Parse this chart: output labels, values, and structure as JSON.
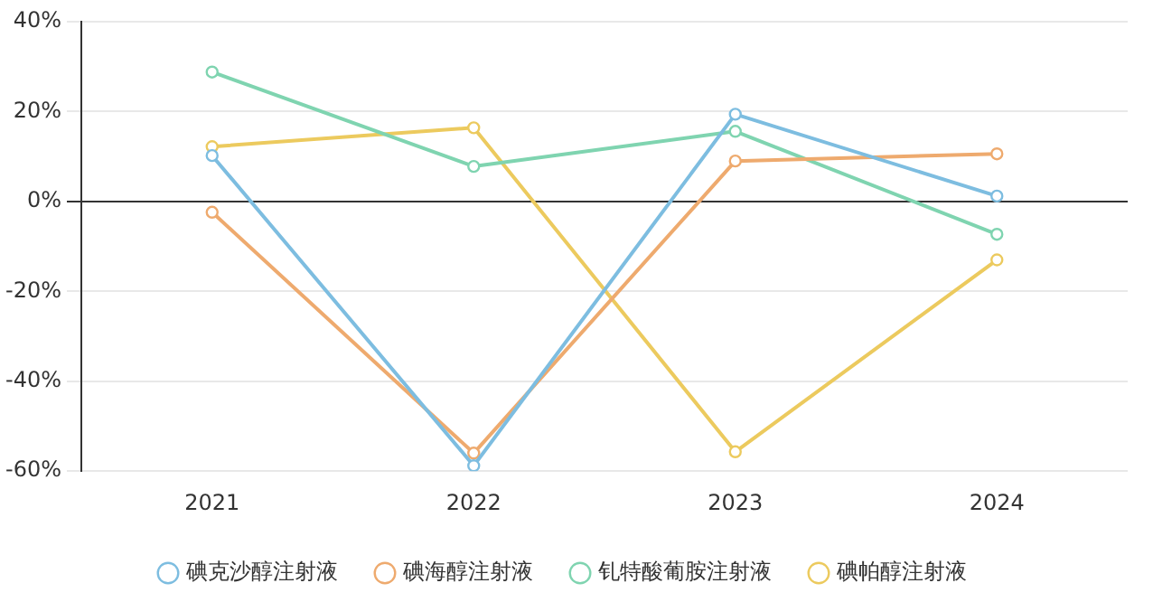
{
  "chart_data": {
    "type": "line",
    "categories": [
      "2021",
      "2022",
      "2023",
      "2024"
    ],
    "series": [
      {
        "name": "碘克沙醇注射液",
        "color": "#7dbde0",
        "values": [
          10.2,
          -58.8,
          19.4,
          1.2
        ]
      },
      {
        "name": "碘海醇注射液",
        "color": "#eeaa6e",
        "values": [
          -2.4,
          -56,
          9,
          10.6
        ]
      },
      {
        "name": "钆特酸葡胺注射液",
        "color": "#7fd4b0",
        "values": [
          28.8,
          7.8,
          15.6,
          -7.3
        ]
      },
      {
        "name": "碘帕醇注射液",
        "color": "#ecca5e",
        "values": [
          12.2,
          16.4,
          -55.7,
          -13
        ]
      }
    ],
    "ylim": [
      -60,
      40
    ],
    "yticks": [
      {
        "value": -60,
        "label": "-60%"
      },
      {
        "value": -40,
        "label": "-40%"
      },
      {
        "value": -20,
        "label": "-20%"
      },
      {
        "value": 0,
        "label": "0%"
      },
      {
        "value": 20,
        "label": "20%"
      },
      {
        "value": 40,
        "label": "40%"
      }
    ],
    "grid": "y",
    "legend": "bottom",
    "marker": "circle",
    "line_style": "solid"
  }
}
